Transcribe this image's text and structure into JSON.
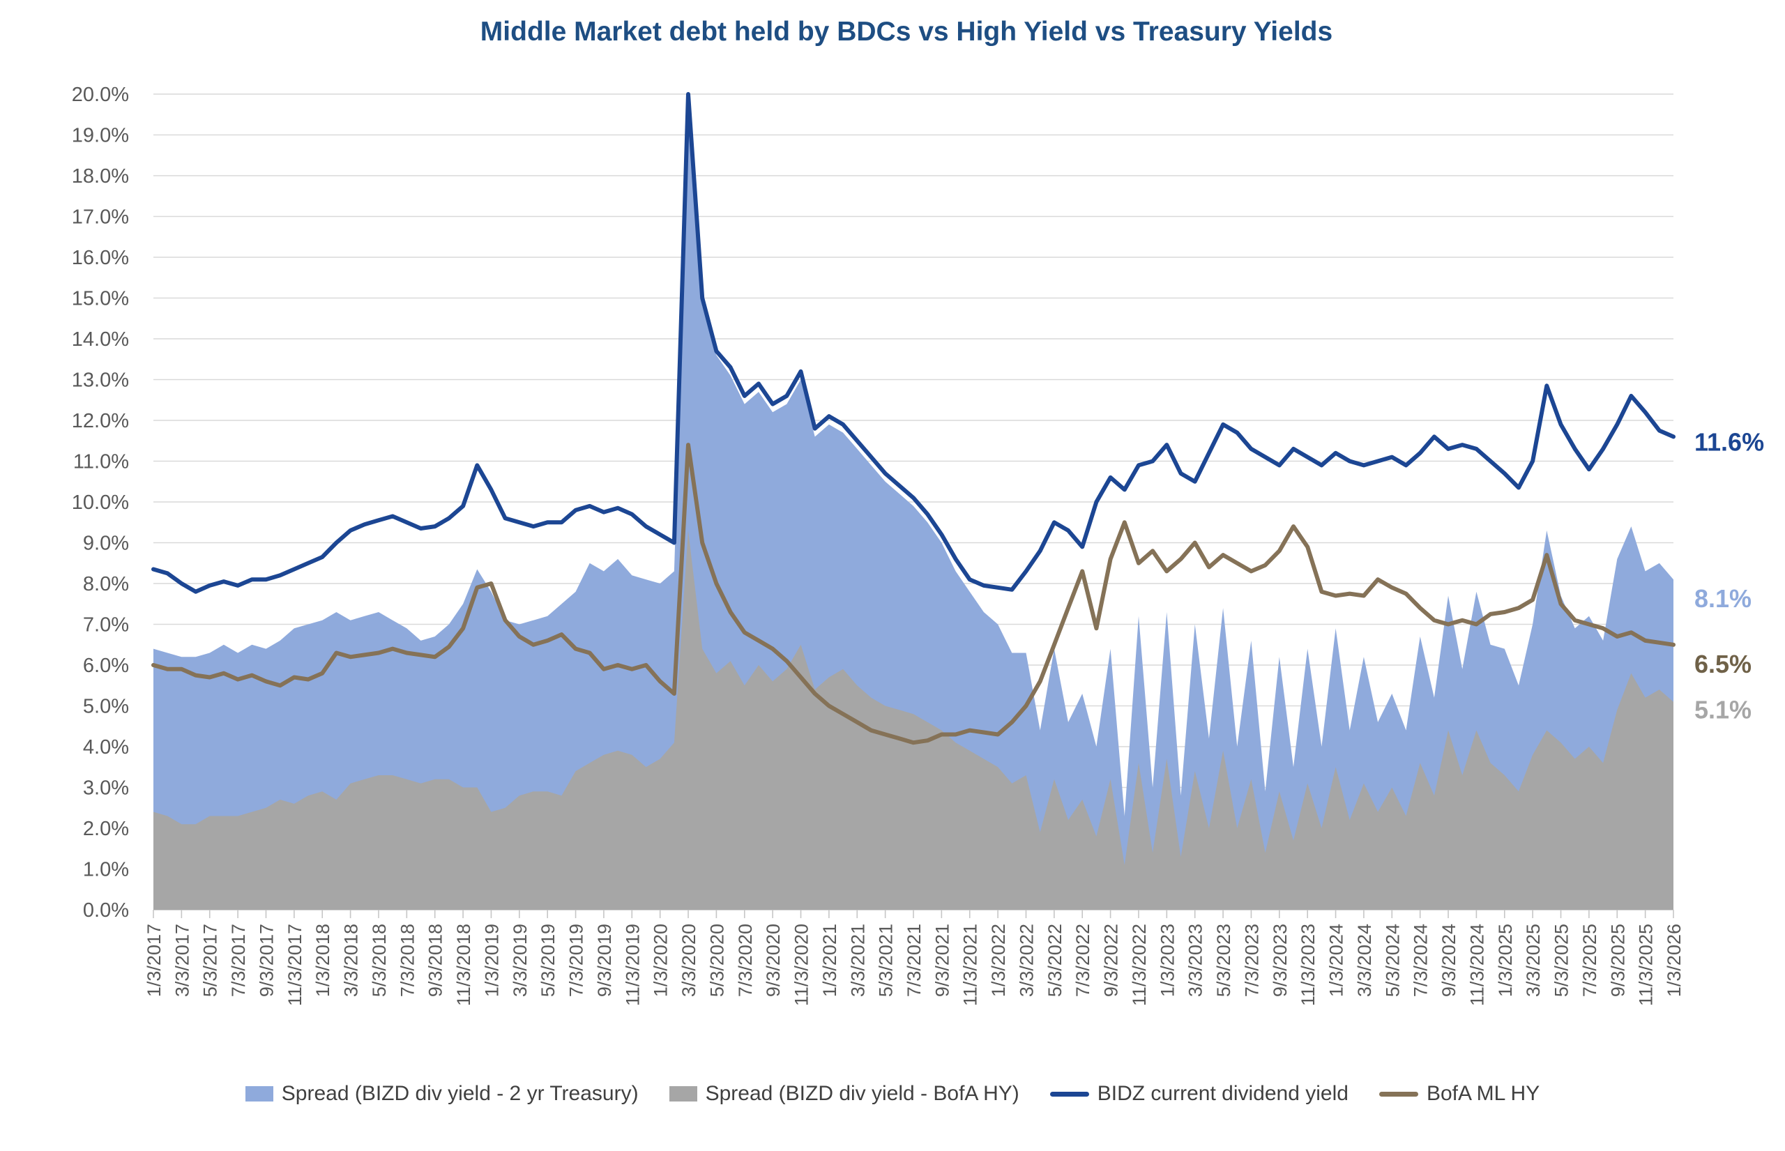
{
  "title": "Middle Market debt held by BDCs vs High Yield vs Treasury Yields",
  "colors": {
    "title": "#1e4e83",
    "bidz_line": "#1c4693",
    "bofa_line": "#857257",
    "spread_treasury_area": "#8faadc",
    "spread_hy_area": "#a6a6a6",
    "gridline": "#d9d9d9",
    "axis_text": "#595959",
    "end_label_bofa": "#6f6148",
    "end_label_gray": "#a6a6a6"
  },
  "end_labels": {
    "bidz": "11.6%",
    "spread_treasury": "8.1%",
    "bofa": "6.5%",
    "spread_hy": "5.1%"
  },
  "legend": [
    {
      "label": "Spread (BIZD div yield - 2 yr Treasury)",
      "marker": "area",
      "series": 0
    },
    {
      "label": "Spread (BIZD div yield - BofA HY)",
      "marker": "area",
      "series": 1
    },
    {
      "label": "BIDZ current dividend yield",
      "marker": "line",
      "series": 3
    },
    {
      "label": "BofA ML HY",
      "marker": "line",
      "series": 2
    }
  ],
  "chart_data": {
    "type": "area+line",
    "title": "Middle Market debt held by BDCs vs High Yield vs Treasury Yields",
    "xlabel": "",
    "ylabel": "",
    "ylim": [
      0,
      20
    ],
    "y_tick_step": 1,
    "y_tick_format": "percent_1dp",
    "x_tick_every": 2,
    "grid": true,
    "legend_position": "bottom",
    "x": [
      "1/3/2017",
      "2/3/2017",
      "3/3/2017",
      "4/3/2017",
      "5/3/2017",
      "6/3/2017",
      "7/3/2017",
      "8/3/2017",
      "9/3/2017",
      "10/3/2017",
      "11/3/2017",
      "12/3/2017",
      "1/3/2018",
      "2/3/2018",
      "3/3/2018",
      "4/3/2018",
      "5/3/2018",
      "6/3/2018",
      "7/3/2018",
      "8/3/2018",
      "9/3/2018",
      "10/3/2018",
      "11/3/2018",
      "12/3/2018",
      "1/3/2019",
      "2/3/2019",
      "3/3/2019",
      "4/3/2019",
      "5/3/2019",
      "6/3/2019",
      "7/3/2019",
      "8/3/2019",
      "9/3/2019",
      "10/3/2019",
      "11/3/2019",
      "12/3/2019",
      "1/3/2020",
      "2/3/2020",
      "3/3/2020",
      "4/3/2020",
      "5/3/2020",
      "6/3/2020",
      "7/3/2020",
      "8/3/2020",
      "9/3/2020",
      "10/3/2020",
      "11/3/2020",
      "12/3/2020",
      "1/3/2021",
      "2/3/2021",
      "3/3/2021",
      "4/3/2021",
      "5/3/2021",
      "6/3/2021",
      "7/3/2021",
      "8/3/2021",
      "9/3/2021",
      "10/3/2021",
      "11/3/2021",
      "12/3/2021",
      "1/3/2022",
      "2/3/2022",
      "3/3/2022",
      "4/3/2022",
      "5/3/2022",
      "6/3/2022",
      "7/3/2022",
      "8/3/2022",
      "9/3/2022",
      "10/3/2022",
      "11/3/2022",
      "12/3/2022",
      "1/3/2023",
      "2/3/2023",
      "3/3/2023",
      "4/3/2023",
      "5/3/2023",
      "6/3/2023",
      "7/3/2023",
      "8/3/2023",
      "9/3/2023",
      "10/3/2023",
      "11/3/2023",
      "12/3/2023",
      "1/3/2024",
      "2/3/2024",
      "3/3/2024",
      "4/3/2024",
      "5/3/2024",
      "6/3/2024",
      "7/3/2024",
      "8/3/2024",
      "9/3/2024",
      "10/3/2024",
      "11/3/2024",
      "12/3/2024",
      "1/3/2025",
      "2/3/2025",
      "3/3/2025",
      "4/3/2025",
      "5/3/2025",
      "6/3/2025",
      "7/3/2025",
      "8/3/2025",
      "9/3/2025",
      "10/3/2025",
      "11/3/2025",
      "12/3/2025",
      "1/3/2026"
    ],
    "series": [
      {
        "name": "Spread (BIZD div yield - 2 yr Treasury)",
        "type": "area",
        "color": "#8faadc",
        "end_label": "8.1%",
        "values": [
          6.4,
          6.3,
          6.2,
          6.2,
          6.3,
          6.5,
          6.3,
          6.5,
          6.4,
          6.6,
          6.9,
          7.0,
          7.1,
          7.3,
          7.1,
          7.2,
          7.3,
          7.1,
          6.9,
          6.6,
          6.7,
          7.0,
          7.5,
          8.35,
          7.8,
          7.1,
          7.0,
          7.1,
          7.2,
          7.5,
          7.8,
          8.5,
          8.3,
          8.6,
          8.2,
          8.1,
          8.0,
          8.3,
          19.4,
          14.8,
          13.6,
          13.1,
          12.4,
          12.7,
          12.2,
          12.4,
          13.0,
          11.6,
          11.9,
          11.7,
          11.3,
          10.9,
          10.5,
          10.2,
          9.9,
          9.5,
          9.0,
          8.3,
          7.8,
          7.3,
          7.0,
          6.3,
          6.3,
          4.4,
          6.4,
          4.6,
          5.3,
          4.0,
          6.4,
          2.3,
          7.2,
          3.0,
          7.3,
          2.8,
          7.0,
          4.2,
          7.4,
          4.0,
          6.6,
          2.9,
          6.2,
          3.5,
          6.4,
          4.0,
          6.9,
          4.4,
          6.2,
          4.6,
          5.3,
          4.4,
          6.7,
          5.2,
          7.7,
          5.9,
          7.8,
          6.5,
          6.4,
          5.5,
          7.0,
          9.3,
          7.7,
          6.9,
          7.2,
          6.6,
          8.6,
          9.4,
          8.3,
          8.5,
          8.1
        ]
      },
      {
        "name": "Spread (BIZD div yield - BofA HY)",
        "type": "area",
        "color": "#a6a6a6",
        "end_label": "5.1%",
        "values": [
          2.4,
          2.3,
          2.1,
          2.1,
          2.3,
          2.3,
          2.3,
          2.4,
          2.5,
          2.7,
          2.6,
          2.8,
          2.9,
          2.7,
          3.1,
          3.2,
          3.3,
          3.3,
          3.2,
          3.1,
          3.2,
          3.2,
          3.0,
          3.0,
          2.4,
          2.5,
          2.8,
          2.9,
          2.9,
          2.8,
          3.4,
          3.6,
          3.8,
          3.9,
          3.8,
          3.5,
          3.7,
          4.1,
          9.3,
          6.4,
          5.8,
          6.1,
          5.5,
          6.0,
          5.6,
          5.9,
          6.5,
          5.4,
          5.7,
          5.9,
          5.5,
          5.2,
          5.0,
          4.9,
          4.8,
          4.6,
          4.4,
          4.1,
          3.9,
          3.7,
          3.5,
          3.1,
          3.3,
          1.9,
          3.2,
          2.2,
          2.7,
          1.8,
          3.2,
          1.1,
          3.6,
          1.4,
          3.7,
          1.3,
          3.4,
          2.0,
          3.9,
          2.0,
          3.2,
          1.4,
          2.9,
          1.7,
          3.1,
          2.0,
          3.5,
          2.2,
          3.1,
          2.4,
          3.0,
          2.3,
          3.6,
          2.8,
          4.4,
          3.3,
          4.4,
          3.6,
          3.3,
          2.9,
          3.8,
          4.4,
          4.1,
          3.7,
          4.0,
          3.6,
          4.9,
          5.8,
          5.2,
          5.4,
          5.1
        ]
      },
      {
        "name": "BofA ML HY",
        "type": "line",
        "color": "#857257",
        "end_label": "6.5%",
        "values": [
          6.0,
          5.9,
          5.9,
          5.75,
          5.7,
          5.8,
          5.65,
          5.75,
          5.6,
          5.5,
          5.7,
          5.65,
          5.8,
          6.3,
          6.2,
          6.25,
          6.3,
          6.4,
          6.3,
          6.25,
          6.2,
          6.45,
          6.9,
          7.9,
          8.0,
          7.1,
          6.7,
          6.5,
          6.6,
          6.75,
          6.4,
          6.3,
          5.9,
          6.0,
          5.9,
          6.0,
          5.6,
          5.3,
          11.4,
          9.0,
          8.0,
          7.3,
          6.8,
          6.6,
          6.4,
          6.1,
          5.7,
          5.3,
          5.0,
          4.8,
          4.6,
          4.4,
          4.3,
          4.2,
          4.1,
          4.15,
          4.3,
          4.3,
          4.4,
          4.35,
          4.3,
          4.6,
          5.0,
          5.6,
          6.5,
          7.4,
          8.3,
          6.9,
          8.6,
          9.5,
          8.5,
          8.8,
          8.3,
          8.6,
          9.0,
          8.4,
          8.7,
          8.5,
          8.3,
          8.45,
          8.8,
          9.4,
          8.9,
          7.8,
          7.7,
          7.75,
          7.7,
          8.1,
          7.9,
          7.75,
          7.4,
          7.1,
          7.0,
          7.1,
          7.0,
          7.25,
          7.3,
          7.4,
          7.6,
          8.7,
          7.5,
          7.1,
          7.0,
          6.9,
          6.7,
          6.8,
          6.6,
          6.55,
          6.5
        ]
      },
      {
        "name": "BIDZ current dividend yield",
        "type": "line",
        "color": "#1c4693",
        "end_label": "11.6%",
        "values": [
          8.35,
          8.25,
          8.0,
          7.8,
          7.95,
          8.05,
          7.95,
          8.1,
          8.1,
          8.2,
          8.35,
          8.5,
          8.65,
          9.0,
          9.3,
          9.45,
          9.55,
          9.65,
          9.5,
          9.35,
          9.4,
          9.6,
          9.9,
          10.9,
          10.3,
          9.6,
          9.5,
          9.4,
          9.5,
          9.5,
          9.8,
          9.9,
          9.75,
          9.85,
          9.7,
          9.4,
          9.2,
          9.0,
          20.0,
          15.0,
          13.7,
          13.3,
          12.6,
          12.9,
          12.4,
          12.6,
          13.2,
          11.8,
          12.1,
          11.9,
          11.5,
          11.1,
          10.7,
          10.4,
          10.1,
          9.7,
          9.2,
          8.6,
          8.1,
          7.95,
          7.9,
          7.85,
          8.3,
          8.8,
          9.5,
          9.3,
          8.9,
          10.0,
          10.6,
          10.3,
          10.9,
          11.0,
          11.4,
          10.7,
          10.5,
          11.2,
          11.9,
          11.7,
          11.3,
          11.1,
          10.9,
          11.3,
          11.1,
          10.9,
          11.2,
          11.0,
          10.9,
          11.0,
          11.1,
          10.9,
          11.2,
          11.6,
          11.3,
          11.4,
          11.3,
          11.0,
          10.7,
          10.35,
          11.0,
          12.85,
          11.9,
          11.3,
          10.8,
          11.3,
          11.9,
          12.6,
          12.2,
          11.75,
          11.6
        ]
      }
    ]
  }
}
